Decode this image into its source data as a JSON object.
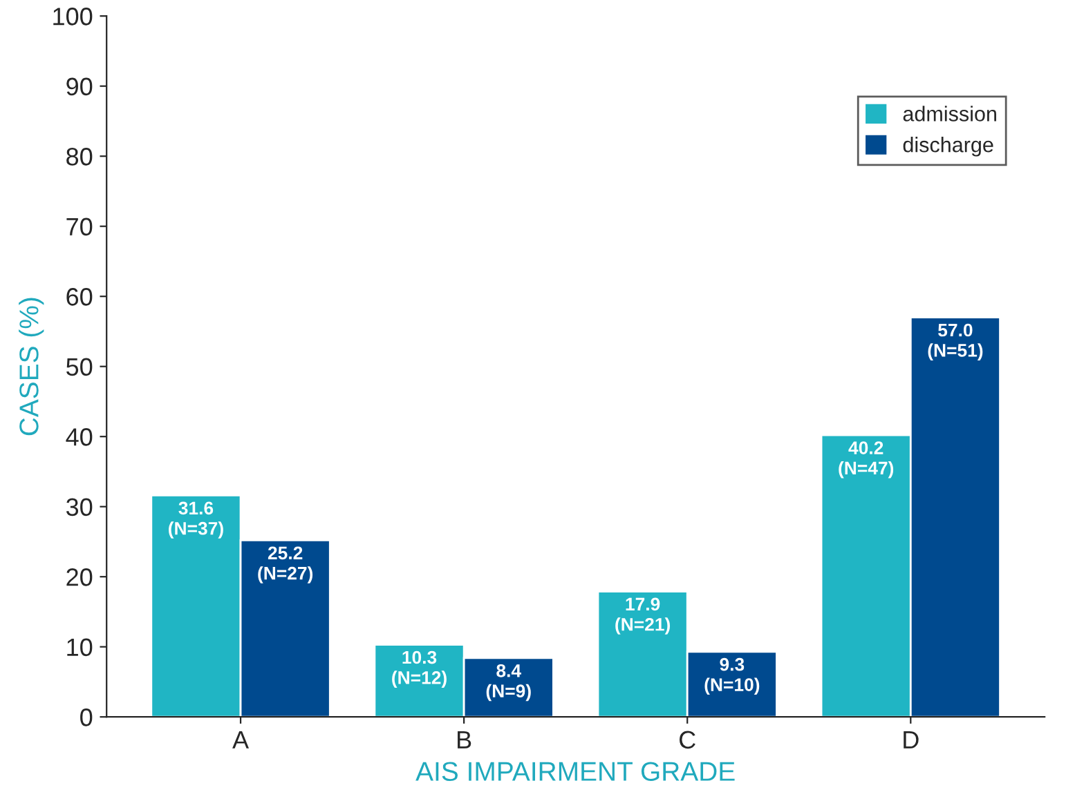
{
  "chart_data": {
    "type": "bar",
    "xlabel": "AIS IMPAIRMENT GRADE",
    "ylabel": "CASES (%)",
    "categories": [
      "A",
      "B",
      "C",
      "D"
    ],
    "series": [
      {
        "name": "admission",
        "color": "#20b5c4",
        "values": [
          31.6,
          10.3,
          17.9,
          40.2
        ],
        "value_labels": [
          "31.6\n(N=37)",
          "10.3\n(N=12)",
          "17.9\n(N=21)",
          "40.2\n(N=47)"
        ]
      },
      {
        "name": "discharge",
        "color": "#004a8f",
        "values": [
          25.2,
          8.4,
          9.3,
          57.0
        ],
        "value_labels": [
          "25.2\n(N=27)",
          "8.4\n(N=9)",
          "9.3\n(N=10)",
          "57.0\n(N=51)"
        ]
      }
    ],
    "ylim": [
      0,
      100
    ],
    "yticks": [
      0,
      10,
      20,
      30,
      40,
      50,
      60,
      70,
      80,
      90,
      100
    ],
    "grid": false,
    "legend": "top right"
  }
}
